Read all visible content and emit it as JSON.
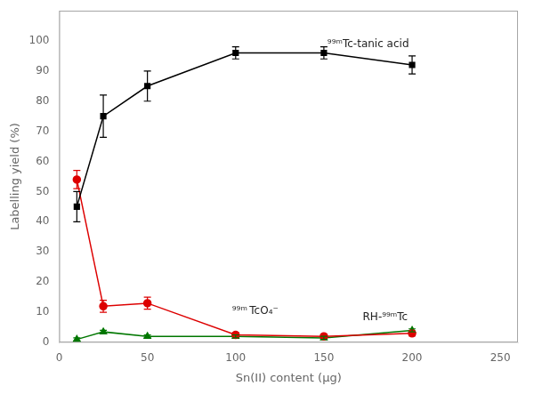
{
  "chart_data": {
    "type": "line",
    "x": [
      10,
      25,
      50,
      100,
      150,
      200
    ],
    "series": [
      {
        "color": "#000000",
        "marker": "square",
        "line_style": "solid",
        "values": [
          45,
          75,
          85,
          96,
          96,
          92
        ],
        "yerr": [
          5,
          7,
          5,
          2,
          2,
          3
        ]
      },
      {
        "color": "#dd0000",
        "marker": "circle",
        "line_style": "solid",
        "values": [
          54,
          12,
          13,
          2.5,
          2,
          3
        ],
        "yerr": [
          3,
          2,
          2,
          0.8,
          0.8,
          0.8
        ]
      },
      {
        "color": "#007700",
        "marker": "triangle",
        "line_style": "solid",
        "values": [
          1,
          3.5,
          2,
          2,
          1.5,
          4
        ],
        "yerr": [
          0.5,
          0.5,
          0.5,
          0.5,
          0.5,
          0.5
        ]
      }
    ],
    "xlabel": "Sn(II) content (μg)",
    "ylabel": "Labelling yield (%)",
    "xlim": [
      0,
      260
    ],
    "ylim": [
      0,
      110
    ],
    "xticks": [
      0,
      50,
      100,
      150,
      200,
      250
    ],
    "yticks": [
      0,
      10,
      20,
      30,
      40,
      50,
      60,
      70,
      80,
      90,
      100
    ],
    "grid": false,
    "annotations": [
      {
        "text": "⁹⁹ᵐTc-tanic acid",
        "x": 152,
        "y": 97
      },
      {
        "text": "⁹⁹ᵐ TcO₄⁻",
        "x": 98,
        "y": 8.5
      },
      {
        "text": "RH-⁹⁹ᵐTc",
        "x": 172,
        "y": 6.5
      }
    ]
  }
}
